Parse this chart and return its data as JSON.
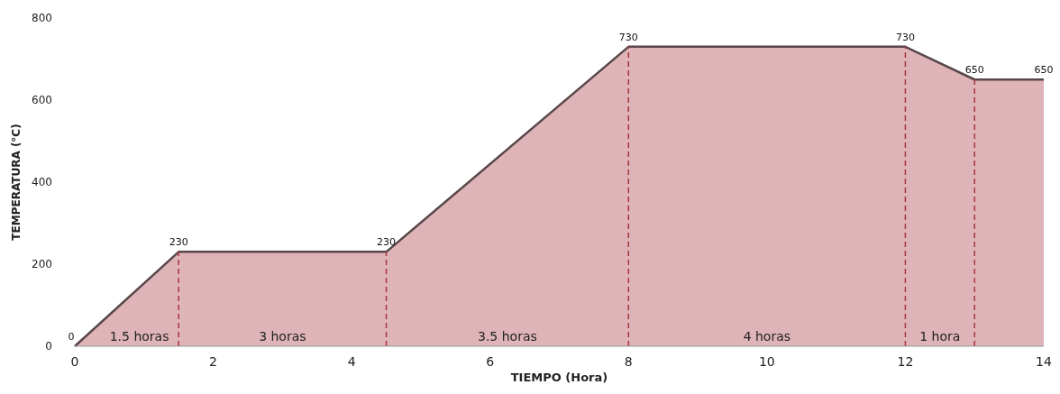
{
  "chart_data": {
    "type": "area",
    "xlabel": "TIEMPO (Hora)",
    "ylabel": "TEMPERATURA (°C)",
    "x": [
      0,
      1.5,
      4.5,
      8,
      12,
      13,
      14
    ],
    "series": [
      {
        "color": "#dfb4b9",
        "values": [
          0,
          230,
          230,
          730,
          730,
          650,
          650
        ]
      }
    ],
    "data_labels": true,
    "xlim": [
      0,
      14
    ],
    "xticks": [
      0,
      2,
      4,
      6,
      8,
      10,
      12,
      14
    ],
    "ylim": [
      0,
      800
    ],
    "yticks": [
      0,
      200,
      400,
      600,
      800
    ],
    "grid": false,
    "ref_lines": [
      {
        "axis": "x",
        "value": 1.5,
        "color": "#a8343c",
        "line_style": "dashed"
      },
      {
        "axis": "x",
        "value": 4.5,
        "color": "#a8343c",
        "line_style": "dashed"
      },
      {
        "axis": "x",
        "value": 8,
        "color": "#a8343c",
        "line_style": "dashed"
      },
      {
        "axis": "x",
        "value": 12,
        "color": "#a8343c",
        "line_style": "dashed"
      },
      {
        "axis": "x",
        "value": 13,
        "color": "#a8343c",
        "line_style": "dashed"
      }
    ],
    "annotations": [
      "1.5 horas",
      "3 horas",
      "3.5 horas",
      "4 horas",
      "1 hora"
    ]
  }
}
